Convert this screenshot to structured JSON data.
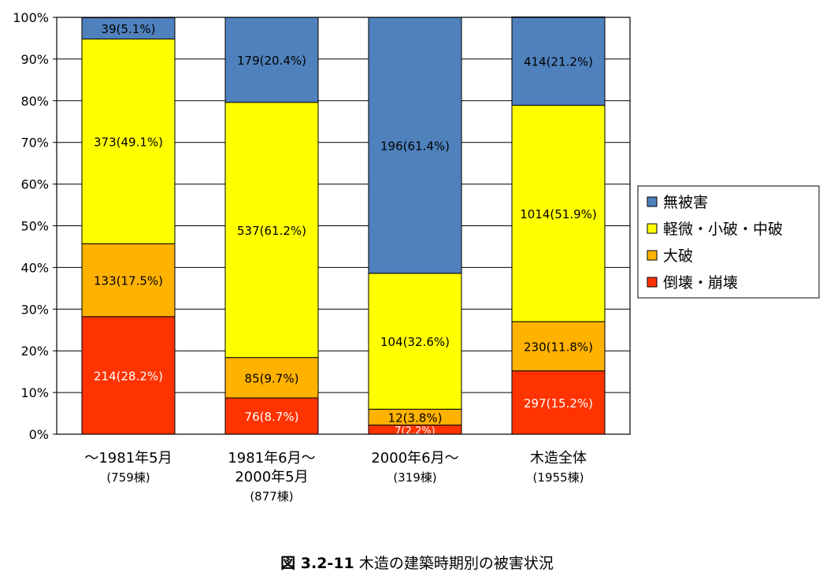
{
  "chart_data": {
    "type": "bar",
    "stacked": true,
    "normalized_percent": true,
    "ylim": [
      0,
      100
    ],
    "yticks": [
      "0%",
      "10%",
      "20%",
      "30%",
      "40%",
      "50%",
      "60%",
      "70%",
      "80%",
      "90%",
      "100%"
    ],
    "grid": true,
    "legend_placement": "right",
    "categories": [
      {
        "lines": [
          "～1981年5月",
          "(759棟)"
        ]
      },
      {
        "lines": [
          "1981年6月～",
          "2000年5月",
          "(877棟)"
        ]
      },
      {
        "lines": [
          "2000年6月～",
          "(319棟)"
        ]
      },
      {
        "lines": [
          "木造全体",
          "(1955棟)"
        ]
      }
    ],
    "series": [
      {
        "name": "倒壊・崩壊",
        "color": "#ff3300",
        "values": [
          28.2,
          8.7,
          2.2,
          15.2
        ],
        "labels": [
          "214(28.2%)",
          "76(8.7%)",
          "7(2.2%)",
          "297(15.2%)"
        ]
      },
      {
        "name": "大破",
        "color": "#ffb200",
        "values": [
          17.5,
          9.7,
          3.8,
          11.8
        ],
        "labels": [
          "133(17.5%)",
          "85(9.7%)",
          "12(3.8%)",
          "230(11.8%)"
        ]
      },
      {
        "name": "軽微・小破・中破",
        "color": "#ffff00",
        "values": [
          49.1,
          61.2,
          32.6,
          51.9
        ],
        "labels": [
          "373(49.1%)",
          "537(61.2%)",
          "104(32.6%)",
          "1014(51.9%)"
        ]
      },
      {
        "name": "無被害",
        "color": "#4f81bd",
        "values": [
          5.1,
          20.4,
          61.4,
          21.2
        ],
        "labels": [
          "39(5.1%)",
          "179(20.4%)",
          "196(61.4%)",
          "414(21.2%)"
        ]
      }
    ],
    "legend_order": [
      "無被害",
      "軽微・小破・中破",
      "大破",
      "倒壊・崩壊"
    ]
  },
  "caption": {
    "figure_number": "図 3.2-11",
    "text": "木造の建築時期別の被害状況"
  }
}
